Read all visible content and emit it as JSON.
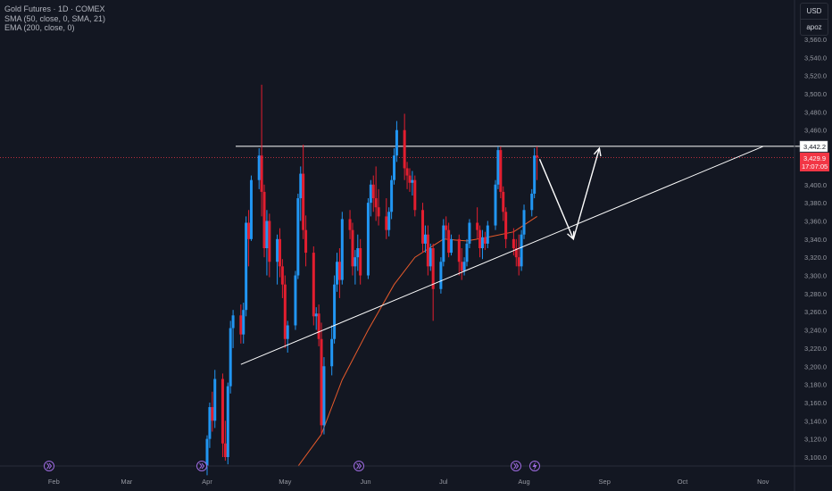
{
  "legend": {
    "symbol": "Gold Futures · 1D · COMEX",
    "sma": "SMA (50, close, 0, SMA, 21)",
    "ema": "EMA (200, close, 0)"
  },
  "price_axis": {
    "currency": "USD",
    "user": "apoz",
    "ticks": [
      "3,560.0",
      "3,540.0",
      "3,520.0",
      "3,500.0",
      "3,480.0",
      "3,460.0",
      "3,440.0",
      "3,420.0",
      "3,400.0",
      "3,380.0",
      "3,360.0",
      "3,340.0",
      "3,320.0",
      "3,300.0",
      "3,280.0",
      "3,260.0",
      "3,240.0",
      "3,220.0",
      "3,200.0",
      "3,180.0",
      "3,160.0",
      "3,140.0",
      "3,120.0",
      "3,100.0"
    ]
  },
  "time_axis": {
    "ticks": [
      "Feb",
      "Mar",
      "Apr",
      "May",
      "Jun",
      "Jul",
      "Aug",
      "Sep",
      "Oct",
      "Nov"
    ]
  },
  "badges": {
    "resistance_price": "3,442.2",
    "last_price": "3,429.9",
    "countdown": "17:07:05"
  },
  "colors": {
    "up": "#2196f3",
    "down": "#e31e2f",
    "ema": "#e65a2b",
    "last_line": "#f23645",
    "annotation": "#ffffff"
  },
  "chart_data": {
    "type": "candlestick",
    "symbol": "Gold Futures",
    "timeframe": "1D",
    "exchange": "COMEX",
    "ylim": [
      3090,
      3575
    ],
    "horizontal_lines": [
      {
        "label": "3,442.2",
        "value": 3442.2
      },
      {
        "label": "3,429.9",
        "value": 3429.9
      }
    ],
    "candles": [
      {
        "d": "2025-04-01",
        "o": 3090,
        "h": 3124,
        "l": 3080,
        "c": 3120
      },
      {
        "d": "2025-04-02",
        "o": 3120,
        "h": 3160,
        "l": 3110,
        "c": 3155
      },
      {
        "d": "2025-04-03",
        "o": 3155,
        "h": 3172,
        "l": 3128,
        "c": 3140
      },
      {
        "d": "2025-04-04",
        "o": 3140,
        "h": 3196,
        "l": 3132,
        "c": 3186
      },
      {
        "d": "2025-04-07",
        "o": 3186,
        "h": 3192,
        "l": 3100,
        "c": 3115
      },
      {
        "d": "2025-04-08",
        "o": 3115,
        "h": 3140,
        "l": 3096,
        "c": 3100
      },
      {
        "d": "2025-04-09",
        "o": 3100,
        "h": 3182,
        "l": 3092,
        "c": 3178
      },
      {
        "d": "2025-04-10",
        "o": 3178,
        "h": 3250,
        "l": 3170,
        "c": 3242
      },
      {
        "d": "2025-04-11",
        "o": 3242,
        "h": 3262,
        "l": 3220,
        "c": 3256
      },
      {
        "d": "2025-04-14",
        "o": 3256,
        "h": 3268,
        "l": 3225,
        "c": 3235
      },
      {
        "d": "2025-04-15",
        "o": 3235,
        "h": 3270,
        "l": 3225,
        "c": 3262
      },
      {
        "d": "2025-04-16",
        "o": 3262,
        "h": 3365,
        "l": 3255,
        "c": 3358
      },
      {
        "d": "2025-04-17",
        "o": 3358,
        "h": 3372,
        "l": 3310,
        "c": 3340
      },
      {
        "d": "2025-04-18",
        "o": 3340,
        "h": 3410,
        "l": 3338,
        "c": 3405
      },
      {
        "d": "2025-04-21",
        "o": 3405,
        "h": 3440,
        "l": 3395,
        "c": 3432
      },
      {
        "d": "2025-04-22",
        "o": 3432,
        "h": 3510,
        "l": 3365,
        "c": 3392
      },
      {
        "d": "2025-04-23",
        "o": 3392,
        "h": 3400,
        "l": 3320,
        "c": 3330
      },
      {
        "d": "2025-04-24",
        "o": 3330,
        "h": 3372,
        "l": 3300,
        "c": 3360
      },
      {
        "d": "2025-04-25",
        "o": 3360,
        "h": 3368,
        "l": 3298,
        "c": 3315
      },
      {
        "d": "2025-04-28",
        "o": 3315,
        "h": 3345,
        "l": 3290,
        "c": 3340
      },
      {
        "d": "2025-04-29",
        "o": 3340,
        "h": 3352,
        "l": 3298,
        "c": 3310
      },
      {
        "d": "2025-04-30",
        "o": 3310,
        "h": 3318,
        "l": 3275,
        "c": 3290
      },
      {
        "d": "2025-05-01",
        "o": 3290,
        "h": 3300,
        "l": 3220,
        "c": 3230
      },
      {
        "d": "2025-05-02",
        "o": 3230,
        "h": 3250,
        "l": 3215,
        "c": 3245
      },
      {
        "d": "2025-05-05",
        "o": 3245,
        "h": 3305,
        "l": 3240,
        "c": 3300
      },
      {
        "d": "2025-05-06",
        "o": 3300,
        "h": 3390,
        "l": 3296,
        "c": 3385
      },
      {
        "d": "2025-05-07",
        "o": 3385,
        "h": 3420,
        "l": 3360,
        "c": 3412
      },
      {
        "d": "2025-05-08",
        "o": 3412,
        "h": 3444,
        "l": 3340,
        "c": 3350
      },
      {
        "d": "2025-05-09",
        "o": 3350,
        "h": 3366,
        "l": 3310,
        "c": 3325
      },
      {
        "d": "2025-05-12",
        "o": 3325,
        "h": 3332,
        "l": 3245,
        "c": 3255
      },
      {
        "d": "2025-05-13",
        "o": 3255,
        "h": 3265,
        "l": 3240,
        "c": 3258
      },
      {
        "d": "2025-05-14",
        "o": 3258,
        "h": 3268,
        "l": 3222,
        "c": 3230
      },
      {
        "d": "2025-05-15",
        "o": 3230,
        "h": 3248,
        "l": 3125,
        "c": 3135
      },
      {
        "d": "2025-05-16",
        "o": 3135,
        "h": 3210,
        "l": 3125,
        "c": 3200
      },
      {
        "d": "2025-05-19",
        "o": 3200,
        "h": 3245,
        "l": 3190,
        "c": 3230
      },
      {
        "d": "2025-05-20",
        "o": 3230,
        "h": 3300,
        "l": 3225,
        "c": 3290
      },
      {
        "d": "2025-05-21",
        "o": 3290,
        "h": 3325,
        "l": 3282,
        "c": 3315
      },
      {
        "d": "2025-05-22",
        "o": 3315,
        "h": 3330,
        "l": 3275,
        "c": 3295
      },
      {
        "d": "2025-05-23",
        "o": 3295,
        "h": 3370,
        "l": 3290,
        "c": 3362
      },
      {
        "d": "2025-05-26",
        "o": 3362,
        "h": 3372,
        "l": 3340,
        "c": 3350
      },
      {
        "d": "2025-05-27",
        "o": 3350,
        "h": 3358,
        "l": 3300,
        "c": 3310
      },
      {
        "d": "2025-05-28",
        "o": 3310,
        "h": 3328,
        "l": 3290,
        "c": 3320
      },
      {
        "d": "2025-05-29",
        "o": 3320,
        "h": 3345,
        "l": 3305,
        "c": 3330
      },
      {
        "d": "2025-05-30",
        "o": 3330,
        "h": 3340,
        "l": 3290,
        "c": 3300
      },
      {
        "d": "2025-06-02",
        "o": 3300,
        "h": 3385,
        "l": 3296,
        "c": 3380
      },
      {
        "d": "2025-06-03",
        "o": 3380,
        "h": 3405,
        "l": 3365,
        "c": 3400
      },
      {
        "d": "2025-06-04",
        "o": 3400,
        "h": 3410,
        "l": 3370,
        "c": 3385
      },
      {
        "d": "2025-06-05",
        "o": 3385,
        "h": 3420,
        "l": 3360,
        "c": 3375
      },
      {
        "d": "2025-06-06",
        "o": 3375,
        "h": 3395,
        "l": 3355,
        "c": 3365
      },
      {
        "d": "2025-06-09",
        "o": 3365,
        "h": 3385,
        "l": 3340,
        "c": 3350
      },
      {
        "d": "2025-06-10",
        "o": 3350,
        "h": 3375,
        "l": 3343,
        "c": 3370
      },
      {
        "d": "2025-06-11",
        "o": 3370,
        "h": 3410,
        "l": 3362,
        "c": 3405
      },
      {
        "d": "2025-06-12",
        "o": 3405,
        "h": 3440,
        "l": 3400,
        "c": 3432
      },
      {
        "d": "2025-06-13",
        "o": 3432,
        "h": 3470,
        "l": 3425,
        "c": 3460
      },
      {
        "d": "2025-06-16",
        "o": 3460,
        "h": 3478,
        "l": 3405,
        "c": 3418
      },
      {
        "d": "2025-06-17",
        "o": 3418,
        "h": 3425,
        "l": 3395,
        "c": 3410
      },
      {
        "d": "2025-06-18",
        "o": 3410,
        "h": 3418,
        "l": 3392,
        "c": 3402
      },
      {
        "d": "2025-06-19",
        "o": 3402,
        "h": 3415,
        "l": 3388,
        "c": 3405
      },
      {
        "d": "2025-06-20",
        "o": 3405,
        "h": 3410,
        "l": 3365,
        "c": 3372
      },
      {
        "d": "2025-06-23",
        "o": 3372,
        "h": 3380,
        "l": 3325,
        "c": 3335
      },
      {
        "d": "2025-06-24",
        "o": 3335,
        "h": 3355,
        "l": 3325,
        "c": 3345
      },
      {
        "d": "2025-06-25",
        "o": 3345,
        "h": 3355,
        "l": 3300,
        "c": 3310
      },
      {
        "d": "2025-06-26",
        "o": 3310,
        "h": 3335,
        "l": 3305,
        "c": 3330
      },
      {
        "d": "2025-06-27",
        "o": 3330,
        "h": 3335,
        "l": 3250,
        "c": 3285
      },
      {
        "d": "2025-06-30",
        "o": 3285,
        "h": 3320,
        "l": 3280,
        "c": 3315
      },
      {
        "d": "2025-07-01",
        "o": 3315,
        "h": 3362,
        "l": 3310,
        "c": 3355
      },
      {
        "d": "2025-07-02",
        "o": 3355,
        "h": 3365,
        "l": 3340,
        "c": 3350
      },
      {
        "d": "2025-07-03",
        "o": 3350,
        "h": 3358,
        "l": 3320,
        "c": 3325
      },
      {
        "d": "2025-07-04",
        "o": 3325,
        "h": 3345,
        "l": 3322,
        "c": 3340
      },
      {
        "d": "2025-07-07",
        "o": 3340,
        "h": 3345,
        "l": 3300,
        "c": 3315
      },
      {
        "d": "2025-07-08",
        "o": 3315,
        "h": 3330,
        "l": 3295,
        "c": 3305
      },
      {
        "d": "2025-07-09",
        "o": 3305,
        "h": 3320,
        "l": 3300,
        "c": 3315
      },
      {
        "d": "2025-07-10",
        "o": 3315,
        "h": 3340,
        "l": 3310,
        "c": 3335
      },
      {
        "d": "2025-07-11",
        "o": 3335,
        "h": 3362,
        "l": 3330,
        "c": 3358
      },
      {
        "d": "2025-07-14",
        "o": 3358,
        "h": 3375,
        "l": 3340,
        "c": 3350
      },
      {
        "d": "2025-07-15",
        "o": 3350,
        "h": 3355,
        "l": 3320,
        "c": 3330
      },
      {
        "d": "2025-07-16",
        "o": 3330,
        "h": 3350,
        "l": 3318,
        "c": 3342
      },
      {
        "d": "2025-07-17",
        "o": 3342,
        "h": 3348,
        "l": 3328,
        "c": 3335
      },
      {
        "d": "2025-07-18",
        "o": 3335,
        "h": 3360,
        "l": 3330,
        "c": 3355
      },
      {
        "d": "2025-07-21",
        "o": 3355,
        "h": 3405,
        "l": 3350,
        "c": 3400
      },
      {
        "d": "2025-07-22",
        "o": 3400,
        "h": 3442,
        "l": 3395,
        "c": 3438
      },
      {
        "d": "2025-07-23",
        "o": 3438,
        "h": 3442,
        "l": 3385,
        "c": 3392
      },
      {
        "d": "2025-07-24",
        "o": 3392,
        "h": 3398,
        "l": 3360,
        "c": 3370
      },
      {
        "d": "2025-07-25",
        "o": 3370,
        "h": 3375,
        "l": 3330,
        "c": 3340
      },
      {
        "d": "2025-07-28",
        "o": 3340,
        "h": 3352,
        "l": 3322,
        "c": 3330
      },
      {
        "d": "2025-07-29",
        "o": 3330,
        "h": 3340,
        "l": 3310,
        "c": 3320
      },
      {
        "d": "2025-07-30",
        "o": 3320,
        "h": 3345,
        "l": 3300,
        "c": 3310
      },
      {
        "d": "2025-07-31",
        "o": 3310,
        "h": 3350,
        "l": 3305,
        "c": 3345
      },
      {
        "d": "2025-08-01",
        "o": 3345,
        "h": 3378,
        "l": 3340,
        "c": 3372
      },
      {
        "d": "2025-08-04",
        "o": 3372,
        "h": 3395,
        "l": 3365,
        "c": 3390
      },
      {
        "d": "2025-08-05",
        "o": 3390,
        "h": 3440,
        "l": 3385,
        "c": 3432
      },
      {
        "d": "2025-08-06",
        "o": 3432,
        "h": 3442,
        "l": 3405,
        "c": 3429.9
      }
    ],
    "ema": [
      {
        "d": "2025-05-06",
        "v": 3090
      },
      {
        "d": "2025-05-15",
        "v": 3125
      },
      {
        "d": "2025-05-23",
        "v": 3185
      },
      {
        "d": "2025-06-02",
        "v": 3240
      },
      {
        "d": "2025-06-12",
        "v": 3290
      },
      {
        "d": "2025-06-20",
        "v": 3320
      },
      {
        "d": "2025-07-01",
        "v": 3340
      },
      {
        "d": "2025-07-10",
        "v": 3338
      },
      {
        "d": "2025-07-18",
        "v": 3342
      },
      {
        "d": "2025-07-28",
        "v": 3348
      },
      {
        "d": "2025-08-06",
        "v": 3365
      }
    ],
    "trendlines": [
      {
        "name": "ascending-support",
        "from": {
          "d": "2025-04-14",
          "v": 3202
        },
        "to": {
          "d": "2025-11-01",
          "v": 3442
        }
      },
      {
        "name": "horizontal-resistance",
        "from": {
          "d": "2025-04-12",
          "v": 3442.2
        },
        "to": {
          "d": "2025-11-01",
          "v": 3442.2
        }
      }
    ],
    "projection": [
      {
        "d": "2025-08-07",
        "v": 3428
      },
      {
        "d": "2025-08-20",
        "v": 3340
      },
      {
        "d": "2025-08-30",
        "v": 3440
      }
    ]
  }
}
